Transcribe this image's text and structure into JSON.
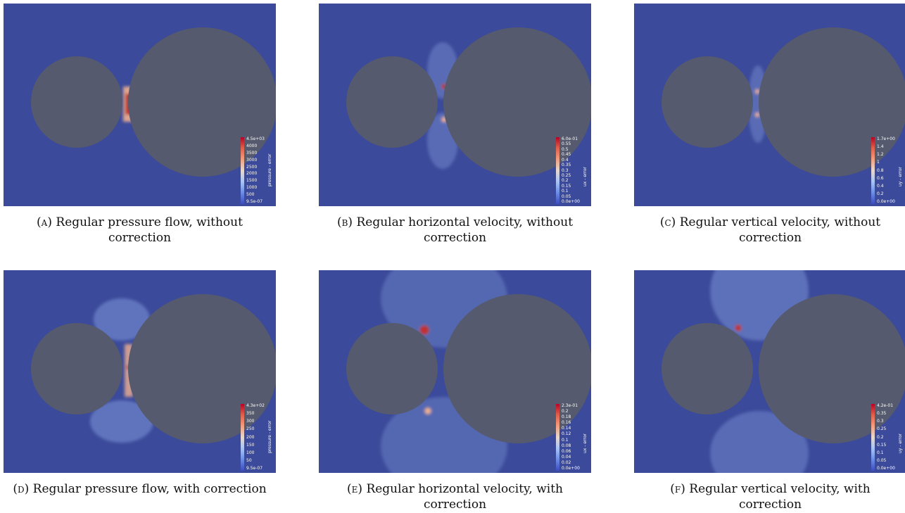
{
  "figure": {
    "panels": [
      {
        "id": "a",
        "label": "(a)",
        "caption": "Regular pressure flow, without correction",
        "colorbar": {
          "title": "pressure - error",
          "ticks": [
            "4.5e+03",
            "4000",
            "3500",
            "3000",
            "2500",
            "2000",
            "1500",
            "1000",
            "500",
            "9.5e-07"
          ]
        },
        "style": "pressure-nocorr"
      },
      {
        "id": "b",
        "label": "(b)",
        "caption": "Regular horizontal velocity, without correction",
        "colorbar": {
          "title": "ux - error",
          "ticks": [
            "6.0e-01",
            "0.55",
            "0.5",
            "0.45",
            "0.4",
            "0.35",
            "0.3",
            "0.25",
            "0.2",
            "0.15",
            "0.1",
            "0.05",
            "0.0e+00"
          ]
        },
        "style": "velx-nocorr"
      },
      {
        "id": "c",
        "label": "(c)",
        "caption": "Regular vertical velocity, without correction",
        "colorbar": {
          "title": "uy - error",
          "ticks": [
            "1.7e+00",
            "1.4",
            "1.2",
            "1",
            "0.8",
            "0.6",
            "0.4",
            "0.2",
            "0.0e+00"
          ]
        },
        "style": "vely-nocorr"
      },
      {
        "id": "d",
        "label": "(d)",
        "caption": "Regular pressure flow, with correction",
        "colorbar": {
          "title": "pressure - error",
          "ticks": [
            "4.3e+02",
            "350",
            "300",
            "250",
            "200",
            "150",
            "100",
            "50",
            "9.5e-07"
          ]
        },
        "style": "pressure-corr"
      },
      {
        "id": "e",
        "label": "(e)",
        "caption": "Regular horizontal velocity, with correction",
        "colorbar": {
          "title": "ux - error",
          "ticks": [
            "2.3e-01",
            "0.2",
            "0.18",
            "0.16",
            "0.14",
            "0.12",
            "0.1",
            "0.08",
            "0.06",
            "0.04",
            "0.02",
            "0.0e+00"
          ]
        },
        "style": "velx-corr"
      },
      {
        "id": "f",
        "label": "(f)",
        "caption": "Regular vertical velocity, with correction",
        "colorbar": {
          "title": "uy - error",
          "ticks": [
            "4.2e-01",
            "0.35",
            "0.3",
            "0.25",
            "0.2",
            "0.15",
            "0.1",
            "0.05",
            "0.0e+00"
          ]
        },
        "style": "vely-corr"
      }
    ],
    "colors": {
      "background": "#3b4a9a",
      "obstacle": "#555a6e",
      "hot": "#c03030",
      "warm": "#f0b090",
      "cool": "#8fa8e8"
    }
  }
}
